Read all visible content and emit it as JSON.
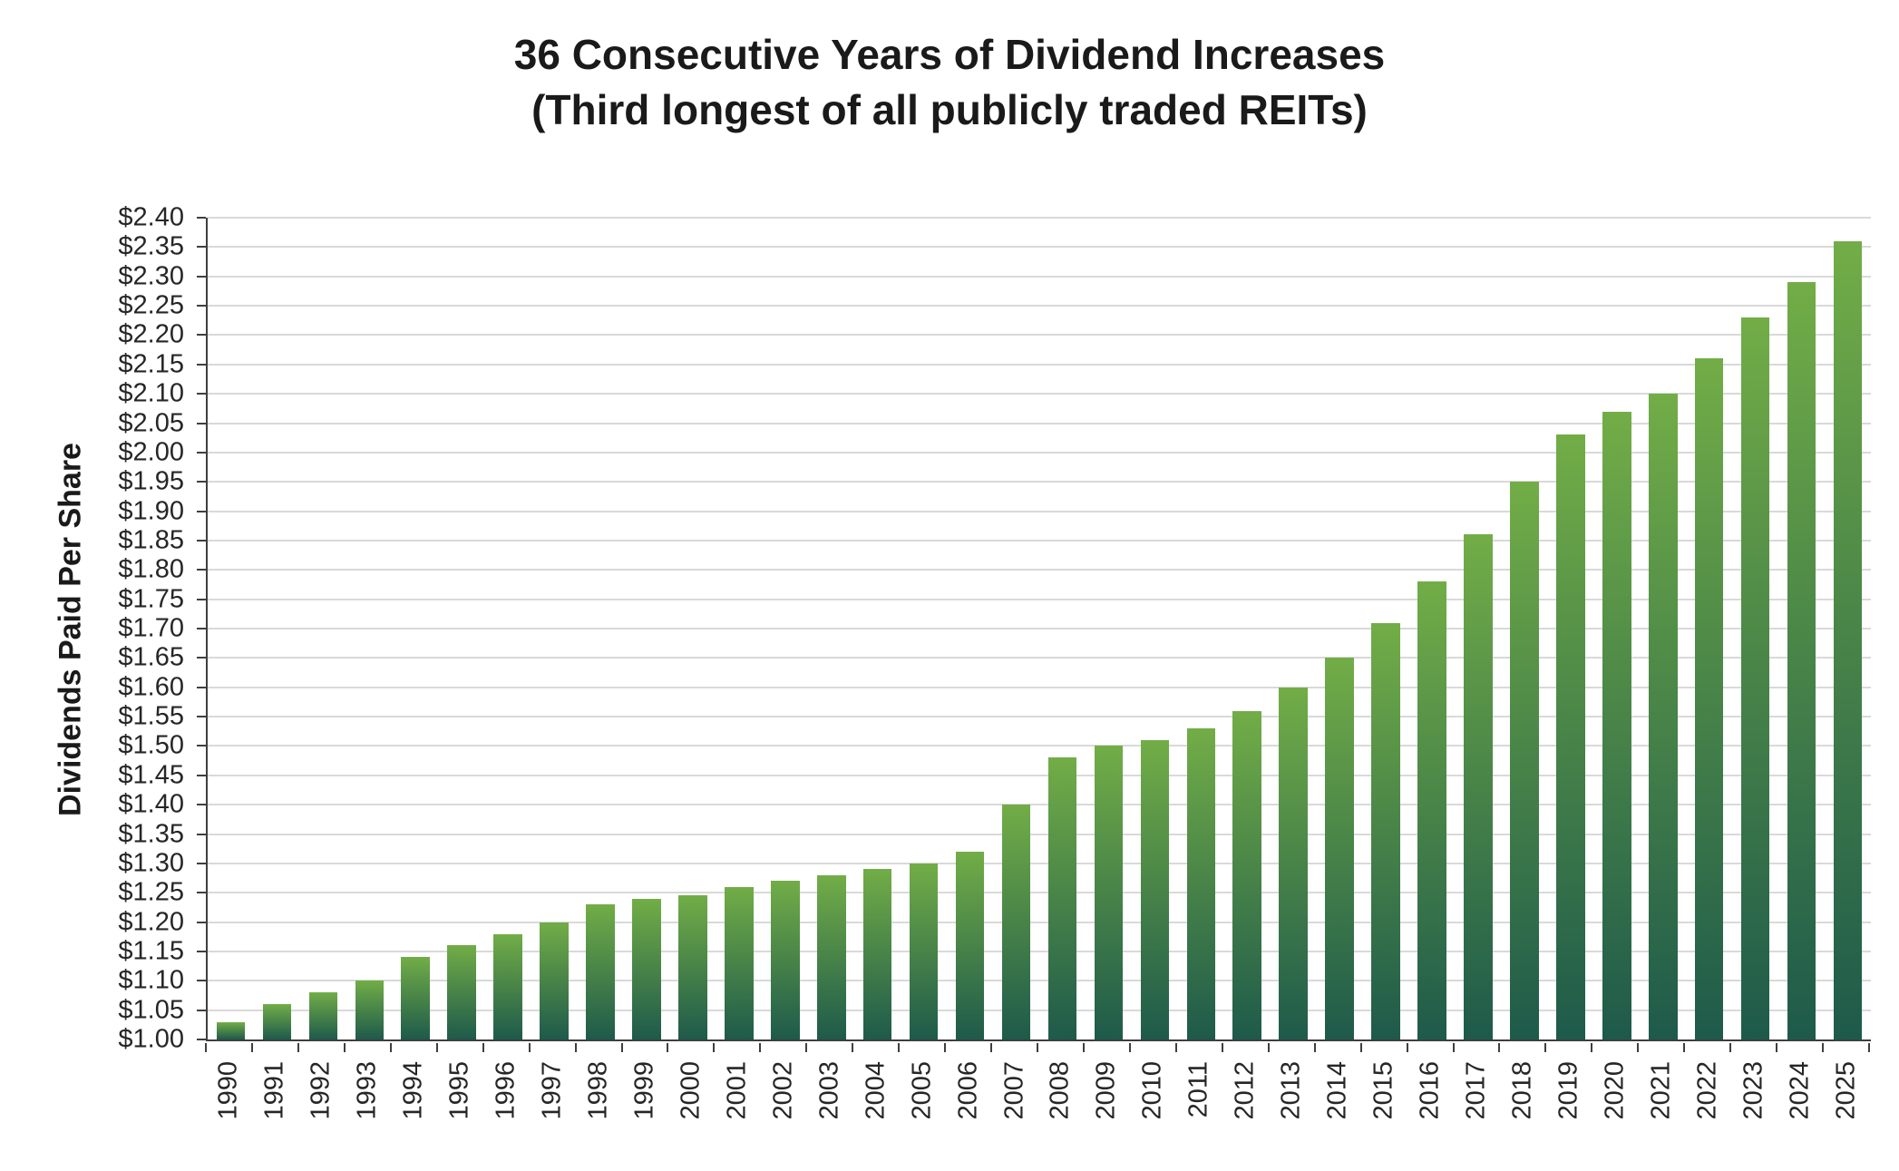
{
  "title": "36 Consecutive Years of Dividend Increases",
  "subtitle": "(Third longest of all publicly traded REITs)",
  "chart_data": {
    "type": "bar",
    "title": "36 Consecutive Years of Dividend Increases",
    "subtitle": "(Third longest of all publicly traded REITs)",
    "xlabel": "",
    "ylabel": "Dividends Paid Per Share",
    "legend": "none",
    "grid": true,
    "ylim": [
      1.0,
      2.4
    ],
    "ytick_step": 0.05,
    "y_ticks": [
      "$1.00",
      "$1.05",
      "$1.10",
      "$1.15",
      "$1.20",
      "$1.25",
      "$1.30",
      "$1.35",
      "$1.40",
      "$1.45",
      "$1.50",
      "$1.55",
      "$1.60",
      "$1.65",
      "$1.70",
      "$1.75",
      "$1.80",
      "$1.85",
      "$1.90",
      "$1.95",
      "$2.00",
      "$2.05",
      "$2.10",
      "$2.15",
      "$2.20",
      "$2.25",
      "$2.30",
      "$2.35",
      "$2.40"
    ],
    "categories": [
      "1990",
      "1991",
      "1992",
      "1993",
      "1994",
      "1995",
      "1996",
      "1997",
      "1998",
      "1999",
      "2000",
      "2001",
      "2002",
      "2003",
      "2004",
      "2005",
      "2006",
      "2007",
      "2008",
      "2009",
      "2010",
      "2011",
      "2012",
      "2013",
      "2014",
      "2015",
      "2016",
      "2017",
      "2018",
      "2019",
      "2020",
      "2021",
      "2022",
      "2023",
      "2024",
      "2025"
    ],
    "values": [
      1.03,
      1.06,
      1.08,
      1.1,
      1.14,
      1.16,
      1.18,
      1.2,
      1.23,
      1.24,
      1.245,
      1.26,
      1.27,
      1.28,
      1.29,
      1.3,
      1.32,
      1.4,
      1.48,
      1.5,
      1.51,
      1.53,
      1.56,
      1.6,
      1.65,
      1.71,
      1.78,
      1.86,
      1.95,
      2.03,
      2.07,
      2.1,
      2.16,
      2.23,
      2.29,
      2.36
    ],
    "bar_color_top": "#72ad47",
    "bar_color_bottom": "#1e5a4a",
    "gridline_color": "#d9d9d9",
    "axis_color": "#3f3f3f"
  }
}
